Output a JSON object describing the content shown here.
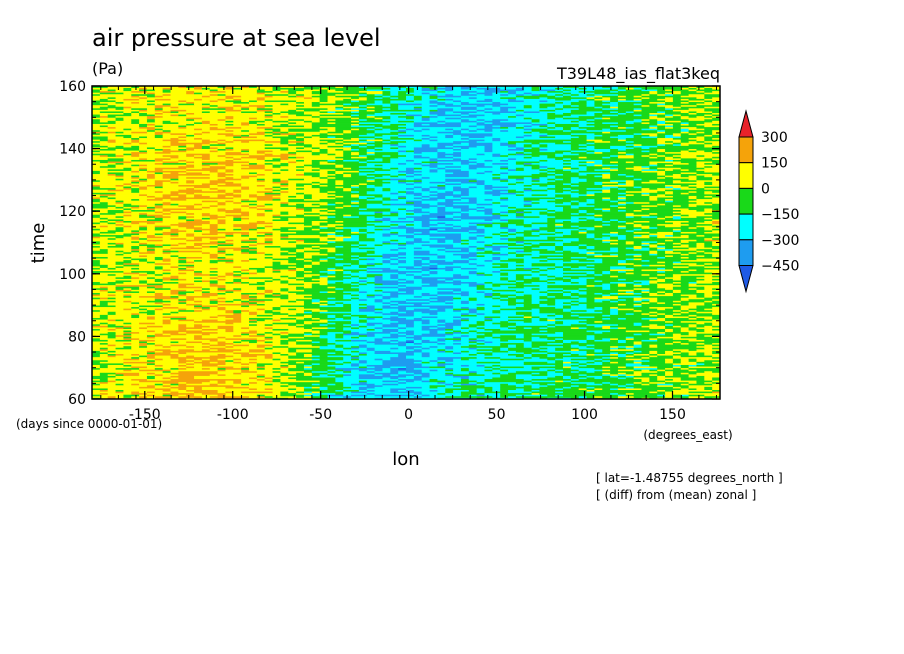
{
  "chart_data": {
    "type": "heatmap",
    "title": "air pressure at sea level",
    "units": "(Pa)",
    "experiment": "T39L48_ias_flat3keq",
    "xlabel": "lon",
    "xunits": "(degrees_east)",
    "ylabel": "time",
    "yunits": "(days since 0000-01-01)",
    "xlim": [
      -180,
      177
    ],
    "ylim": [
      60,
      160
    ],
    "xticks": [
      -150,
      -100,
      -50,
      0,
      50,
      100,
      150
    ],
    "yticks": [
      60,
      80,
      100,
      120,
      140,
      160
    ],
    "colorbar": {
      "levels": [
        300,
        150,
        0,
        -150,
        -300,
        -450
      ],
      "colors": [
        "#e8222a",
        "#f5a30a",
        "#ffff00",
        "#19d919",
        "#00ffff",
        "#1e9cf0",
        "#1e5ae6"
      ]
    },
    "annotations": [
      "[ lat=-1.48755 degrees_north ]",
      "[ (diff) from (mean) zonal ]"
    ]
  }
}
